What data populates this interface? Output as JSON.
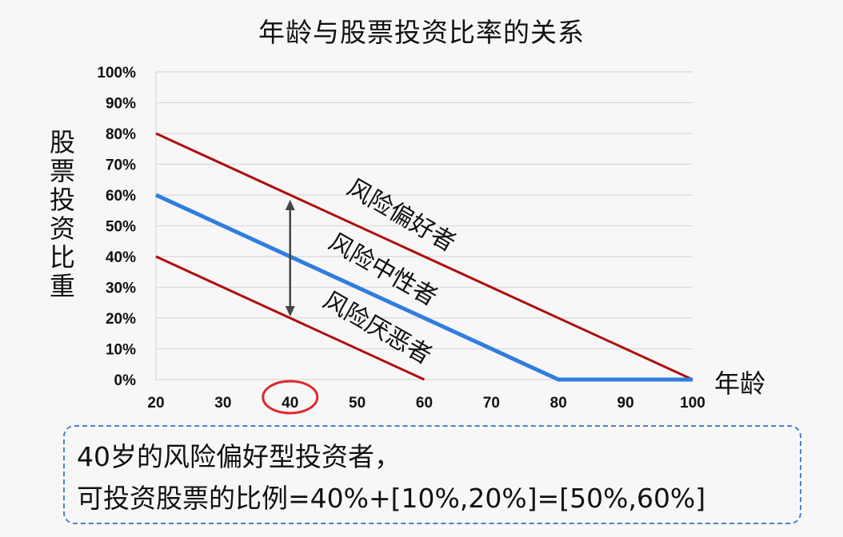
{
  "chart_data": {
    "type": "line",
    "title": "年龄与股票投资比率的关系",
    "xlabel": "年龄",
    "ylabel": "股票投资比重",
    "xlim": [
      20,
      100
    ],
    "ylim": [
      0,
      100
    ],
    "x_ticks": [
      "20",
      "30",
      "40",
      "50",
      "60",
      "70",
      "80",
      "90",
      "100"
    ],
    "y_ticks": [
      "0%",
      "10%",
      "20%",
      "30%",
      "40%",
      "50%",
      "60%",
      "70%",
      "80%",
      "90%",
      "100%"
    ],
    "grid": true,
    "series": [
      {
        "name": "风险偏好者",
        "color": "#b00d0d",
        "x": [
          20,
          100
        ],
        "y": [
          80,
          0
        ]
      },
      {
        "name": "风险中性者",
        "color": "#2f7de1",
        "x": [
          20,
          80,
          100
        ],
        "y": [
          60,
          0,
          0
        ]
      },
      {
        "name": "风险厌恶者",
        "color": "#b00d0d",
        "x": [
          20,
          60
        ],
        "y": [
          40,
          0
        ]
      }
    ],
    "annotations": {
      "range_arrow": {
        "x": 40,
        "y_from": 20,
        "y_to": 60
      },
      "circled_tick": "40"
    }
  },
  "note": {
    "line1": "40岁的风险偏好型投资者，",
    "line2": "可投资股票的比例=40%+[10%,20%]=[50%,60%]"
  },
  "colors": {
    "note_border": "#4a7fd1",
    "circle": "#e0262b",
    "grid": "#d9d9d9"
  }
}
